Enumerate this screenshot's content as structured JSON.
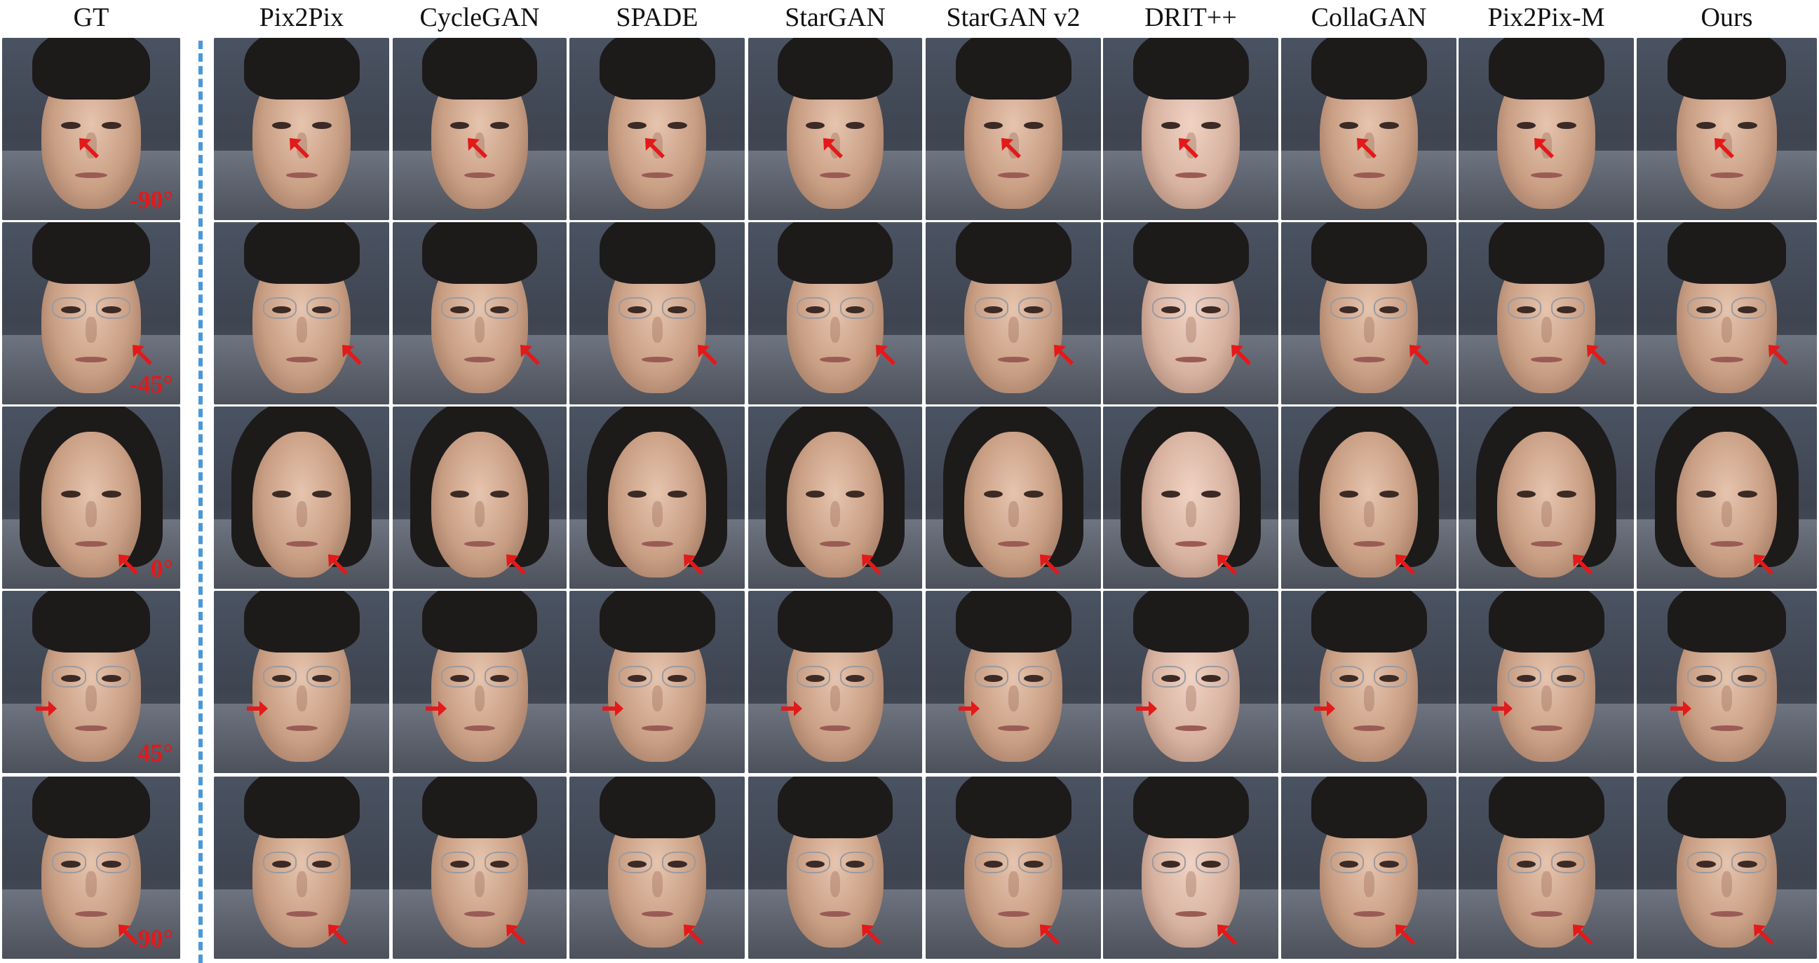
{
  "columns": [
    "GT",
    "Pix2Pix",
    "CycleGAN",
    "SPADE",
    "StarGAN",
    "StarGAN v2",
    "DRIT++",
    "CollaGAN",
    "Pix2Pix-M",
    "Ours"
  ],
  "rows": [
    {
      "angle": "-90°",
      "glasses": false,
      "long_hair": false,
      "arrow_dir": "up-left"
    },
    {
      "angle": "-45°",
      "glasses": true,
      "long_hair": false,
      "arrow_dir": "up-left"
    },
    {
      "angle": "0°",
      "glasses": false,
      "long_hair": true,
      "arrow_dir": "up-left"
    },
    {
      "angle": "45°",
      "glasses": true,
      "long_hair": false,
      "arrow_dir": "right"
    },
    {
      "angle": "90°",
      "glasses": true,
      "long_hair": false,
      "arrow_dir": "up-left"
    }
  ],
  "colors": {
    "arrow": "#e3191a",
    "separator": "#4a98d8"
  }
}
